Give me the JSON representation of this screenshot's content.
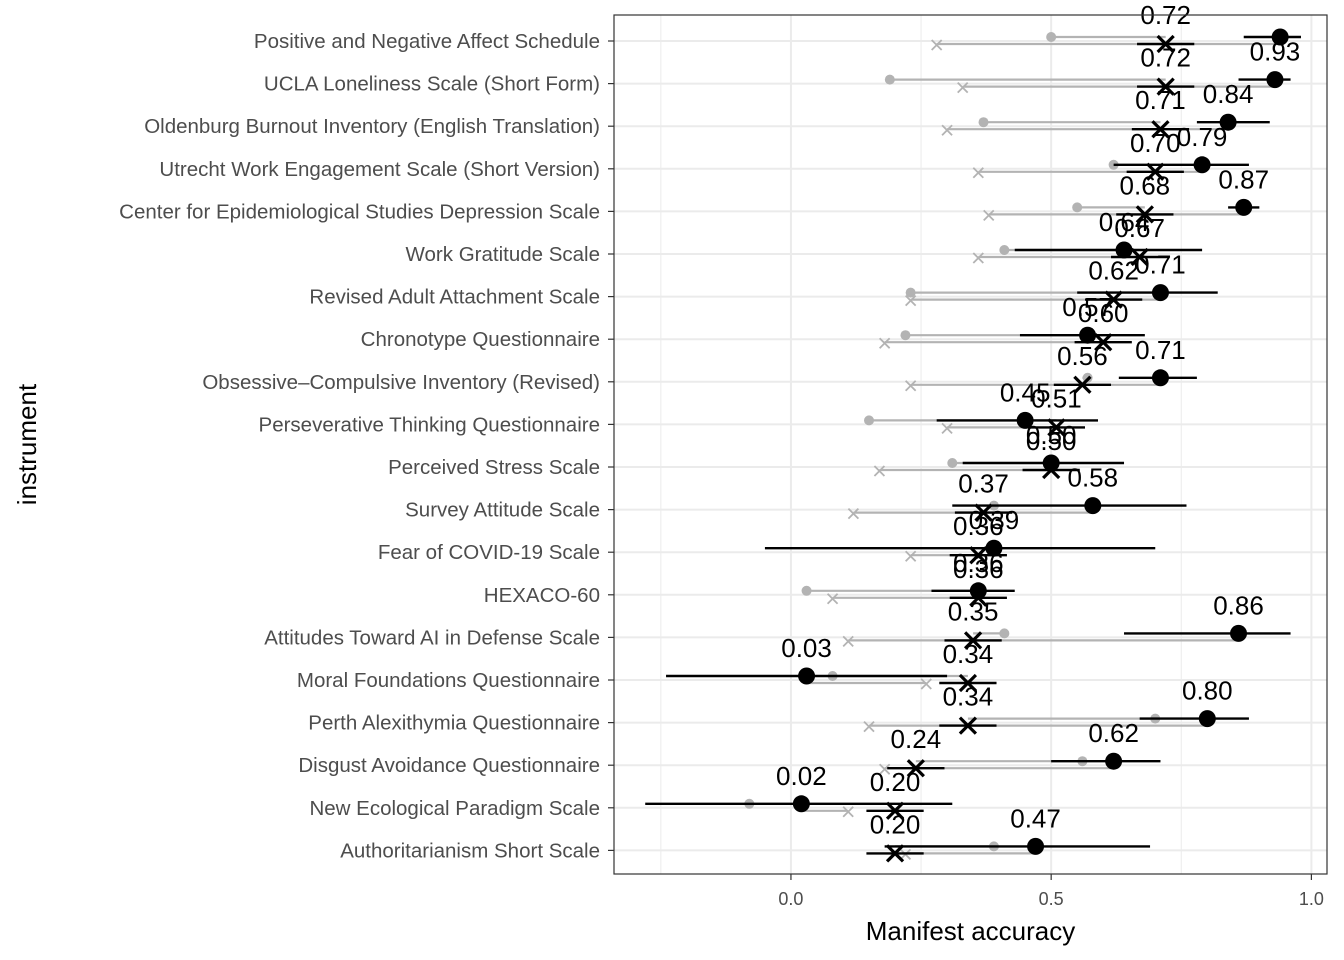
{
  "chart_data": {
    "type": "dumbbell-errorbar",
    "xlabel": "Manifest accuracy",
    "ylabel": "instrument",
    "xlim": [
      -0.34,
      1.03
    ],
    "x_ticks": [
      0.0,
      0.5,
      1.0
    ],
    "x_tick_labels": [
      "0.0",
      "0.5",
      "1.0"
    ],
    "grid": true,
    "colors": {
      "primary": "#000000",
      "secondary": "#b3b3b3",
      "grid": "#ebebeb",
      "panel_border": "#333333"
    },
    "instruments": [
      {
        "name": "Positive and Negative Affect Schedule",
        "dot": 0.94,
        "dot_ci": [
          0.87,
          0.98
        ],
        "cross": 0.72,
        "cross_label": "0.72",
        "grey_dot": 0.5,
        "grey_cross": 0.28
      },
      {
        "name": "UCLA Loneliness Scale (Short Form)",
        "dot": 0.93,
        "dot_label": "0.93",
        "dot_ci": [
          0.86,
          0.96
        ],
        "cross": 0.72,
        "cross_label": "0.72",
        "grey_dot": 0.19,
        "grey_cross": 0.33
      },
      {
        "name": "Oldenburg Burnout Inventory (English Translation)",
        "dot": 0.84,
        "dot_label": "0.84",
        "dot_ci": [
          0.78,
          0.92
        ],
        "cross": 0.71,
        "cross_label": "0.71",
        "grey_dot": 0.37,
        "grey_cross": 0.3
      },
      {
        "name": "Utrecht Work Engagement Scale (Short Version)",
        "dot": 0.79,
        "dot_label": "0.79",
        "dot_ci": [
          0.62,
          0.88
        ],
        "cross": 0.7,
        "cross_label": "0.70",
        "grey_dot": 0.62,
        "grey_cross": 0.36
      },
      {
        "name": "Center for Epidemiological Studies Depression Scale",
        "dot": 0.87,
        "dot_label": "0.87",
        "dot_ci": [
          0.84,
          0.9
        ],
        "cross": 0.68,
        "cross_label": "0.68",
        "grey_dot": 0.55,
        "grey_cross": 0.38
      },
      {
        "name": "Work Gratitude Scale",
        "dot": 0.64,
        "dot_label": "0.64",
        "dot_ci": [
          0.43,
          0.79
        ],
        "cross": 0.67,
        "cross_label": "0.67",
        "grey_dot": 0.41,
        "grey_cross": 0.36
      },
      {
        "name": "Revised Adult Attachment Scale",
        "dot": 0.71,
        "dot_label": "0.71",
        "dot_ci": [
          0.55,
          0.82
        ],
        "cross": 0.62,
        "cross_label": "0.62",
        "grey_dot": 0.23,
        "grey_cross": 0.23
      },
      {
        "name": "Chronotype Questionnaire",
        "dot": 0.57,
        "dot_label": "0.57",
        "dot_ci": [
          0.44,
          0.68
        ],
        "cross": 0.6,
        "cross_label": "0.60",
        "grey_dot": 0.22,
        "grey_cross": 0.18
      },
      {
        "name": "Obsessive–Compulsive Inventory (Revised)",
        "dot": 0.71,
        "dot_label": "0.71",
        "dot_ci": [
          0.63,
          0.78
        ],
        "cross": 0.56,
        "cross_label": "0.56",
        "grey_dot": 0.57,
        "grey_cross": 0.23
      },
      {
        "name": "Perseverative Thinking Questionnaire",
        "dot": 0.45,
        "dot_label": "0.45",
        "dot_ci": [
          0.28,
          0.59
        ],
        "cross": 0.51,
        "cross_label": "0.51",
        "grey_dot": 0.15,
        "grey_cross": 0.3
      },
      {
        "name": "Perceived Stress Scale",
        "dot": 0.5,
        "dot_label": "0.50",
        "dot_ci": [
          0.33,
          0.64
        ],
        "cross": 0.5,
        "cross_label": "0.50",
        "grey_dot": 0.31,
        "grey_cross": 0.17
      },
      {
        "name": "Survey Attitude Scale",
        "dot": 0.58,
        "dot_label": "0.58",
        "dot_ci": [
          0.31,
          0.76
        ],
        "cross": 0.37,
        "cross_label": "0.37",
        "grey_dot": 0.39,
        "grey_cross": 0.12
      },
      {
        "name": "Fear of COVID-19 Scale",
        "dot": 0.39,
        "dot_label": "0.39",
        "dot_ci": [
          -0.05,
          0.7
        ],
        "cross": 0.36,
        "cross_label": "0.36",
        "grey_dot": 0.39,
        "grey_cross": 0.23
      },
      {
        "name": "HEXACO-60",
        "dot": 0.36,
        "dot_label": "0.36",
        "dot_ci": [
          0.27,
          0.43
        ],
        "cross": 0.36,
        "cross_label": "0.36",
        "grey_dot": 0.03,
        "grey_cross": 0.08
      },
      {
        "name": "Attitudes Toward AI in Defense Scale",
        "dot": 0.86,
        "dot_label": "0.86",
        "dot_ci": [
          0.64,
          0.96
        ],
        "cross": 0.35,
        "cross_label": "0.35",
        "grey_dot": 0.41,
        "grey_cross": 0.11
      },
      {
        "name": "Moral Foundations Questionnaire",
        "dot": 0.03,
        "dot_label": "0.03",
        "dot_ci": [
          -0.24,
          0.3
        ],
        "cross": 0.34,
        "cross_label": "0.34",
        "grey_dot": 0.08,
        "grey_cross": 0.26
      },
      {
        "name": "Perth Alexithymia Questionnaire",
        "dot": 0.8,
        "dot_label": "0.80",
        "dot_ci": [
          0.67,
          0.88
        ],
        "cross": 0.34,
        "cross_label": "0.34",
        "grey_dot": 0.7,
        "grey_cross": 0.15
      },
      {
        "name": "Disgust Avoidance Questionnaire",
        "dot": 0.62,
        "dot_label": "0.62",
        "dot_ci": [
          0.5,
          0.71
        ],
        "cross": 0.24,
        "cross_label": "0.24",
        "grey_dot": 0.56,
        "grey_cross": 0.18
      },
      {
        "name": "New Ecological Paradigm Scale",
        "dot": 0.02,
        "dot_label": "0.02",
        "dot_ci": [
          -0.28,
          0.31
        ],
        "cross": 0.2,
        "cross_label": "0.20",
        "grey_dot": -0.08,
        "grey_cross": 0.11
      },
      {
        "name": "Authoritarianism Short Scale",
        "dot": 0.47,
        "dot_label": "0.47",
        "dot_ci": [
          0.18,
          0.69
        ],
        "cross": 0.2,
        "cross_label": "0.20",
        "grey_dot": 0.39,
        "grey_cross": 0.22
      }
    ]
  }
}
